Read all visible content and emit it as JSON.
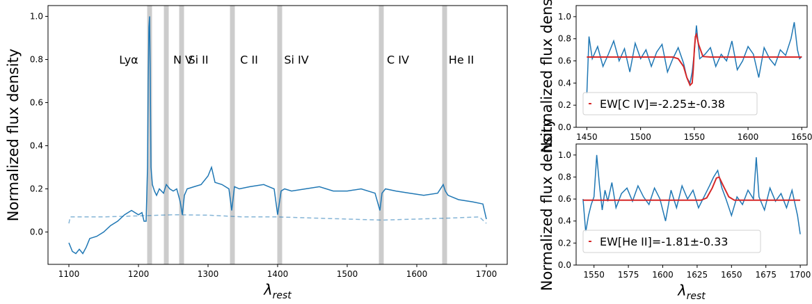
{
  "chart_data": [
    {
      "type": "line",
      "id": "main",
      "xlabel": "λ_rest",
      "ylabel": "Normalized flux density",
      "xlim": [
        1070,
        1730
      ],
      "ylim": [
        -0.15,
        1.05
      ],
      "xticks": [
        1100,
        1200,
        1300,
        1400,
        1500,
        1600,
        1700
      ],
      "yticks": [
        0.0,
        0.2,
        0.4,
        0.6,
        0.8,
        1.0
      ],
      "ytick_labels": [
        "0.0",
        "0.2",
        "0.4",
        "0.6",
        "0.8",
        "1.0"
      ],
      "grid": false,
      "line_color": "#1f77b4",
      "band_color": "#cccccc",
      "lines": [
        {
          "label": "Lyα",
          "x": 1216
        },
        {
          "label": "N V",
          "x": 1240
        },
        {
          "label": "Si II",
          "x": 1262
        },
        {
          "label": "C II",
          "x": 1335
        },
        {
          "label": "Si IV",
          "x": 1403
        },
        {
          "label": "C IV",
          "x": 1549
        },
        {
          "label": "He II",
          "x": 1640
        }
      ],
      "line_label_y": 0.8,
      "series": [
        {
          "style": "solid",
          "x": [
            1100,
            1105,
            1110,
            1115,
            1120,
            1125,
            1130,
            1140,
            1150,
            1160,
            1170,
            1180,
            1190,
            1200,
            1205,
            1208,
            1211,
            1213,
            1214,
            1215,
            1216,
            1217,
            1218,
            1220,
            1223,
            1226,
            1230,
            1236,
            1240,
            1245,
            1250,
            1255,
            1260,
            1263,
            1266,
            1270,
            1280,
            1290,
            1300,
            1305,
            1310,
            1320,
            1330,
            1334,
            1338,
            1345,
            1360,
            1380,
            1395,
            1400,
            1405,
            1410,
            1420,
            1440,
            1460,
            1480,
            1500,
            1520,
            1540,
            1547,
            1550,
            1555,
            1570,
            1590,
            1610,
            1630,
            1638,
            1641,
            1645,
            1660,
            1680,
            1695,
            1700
          ],
          "y": [
            -0.05,
            -0.09,
            -0.1,
            -0.08,
            -0.1,
            -0.07,
            -0.03,
            -0.02,
            0.0,
            0.03,
            0.05,
            0.08,
            0.1,
            0.08,
            0.09,
            0.05,
            0.05,
            0.3,
            0.7,
            0.95,
            1.0,
            0.7,
            0.3,
            0.22,
            0.19,
            0.17,
            0.2,
            0.18,
            0.22,
            0.2,
            0.19,
            0.2,
            0.14,
            0.08,
            0.17,
            0.2,
            0.21,
            0.22,
            0.26,
            0.3,
            0.23,
            0.22,
            0.2,
            0.1,
            0.21,
            0.2,
            0.21,
            0.22,
            0.2,
            0.08,
            0.19,
            0.2,
            0.19,
            0.2,
            0.21,
            0.19,
            0.19,
            0.2,
            0.18,
            0.1,
            0.18,
            0.2,
            0.19,
            0.18,
            0.17,
            0.18,
            0.22,
            0.19,
            0.17,
            0.15,
            0.14,
            0.13,
            0.06
          ]
        },
        {
          "style": "dashed",
          "x": [
            1100,
            1102,
            1110,
            1150,
            1200,
            1250,
            1300,
            1350,
            1400,
            1450,
            1500,
            1550,
            1600,
            1650,
            1690,
            1700
          ],
          "y": [
            0.04,
            0.07,
            0.07,
            0.07,
            0.075,
            0.08,
            0.078,
            0.07,
            0.07,
            0.065,
            0.06,
            0.055,
            0.06,
            0.065,
            0.07,
            0.04
          ]
        }
      ]
    },
    {
      "type": "line",
      "id": "civ",
      "xlabel": "",
      "ylabel": "Normalized flux density",
      "xlim": [
        1440,
        1655
      ],
      "ylim": [
        0.0,
        1.1
      ],
      "xticks": [
        1450,
        1500,
        1550,
        1600,
        1650
      ],
      "yticks": [
        0.0,
        0.2,
        0.4,
        0.6,
        0.8,
        1.0
      ],
      "ytick_labels": [
        "0.0",
        "0.2",
        "0.4",
        "0.6",
        "0.8",
        "1.0"
      ],
      "grid": false,
      "legend": "EW[C IV]=-2.25±-0.38",
      "legend_location": "lower-left",
      "data_color": "#1f77b4",
      "fit_color": "#d62728",
      "series": [
        {
          "style": "data",
          "x": [
            1450,
            1452,
            1455,
            1460,
            1465,
            1470,
            1475,
            1480,
            1485,
            1490,
            1495,
            1500,
            1505,
            1510,
            1515,
            1520,
            1525,
            1530,
            1535,
            1540,
            1543,
            1546,
            1548,
            1550,
            1552,
            1555,
            1560,
            1565,
            1570,
            1575,
            1580,
            1585,
            1590,
            1595,
            1600,
            1605,
            1610,
            1615,
            1620,
            1625,
            1630,
            1635,
            1640,
            1643,
            1646,
            1648,
            1650
          ],
          "y": [
            0.3,
            0.82,
            0.62,
            0.73,
            0.55,
            0.66,
            0.78,
            0.6,
            0.71,
            0.5,
            0.76,
            0.62,
            0.7,
            0.55,
            0.68,
            0.75,
            0.5,
            0.62,
            0.72,
            0.58,
            0.45,
            0.4,
            0.5,
            0.68,
            0.92,
            0.62,
            0.66,
            0.72,
            0.55,
            0.66,
            0.6,
            0.78,
            0.52,
            0.6,
            0.73,
            0.66,
            0.45,
            0.72,
            0.62,
            0.56,
            0.7,
            0.65,
            0.8,
            0.95,
            0.7,
            0.62,
            0.64
          ]
        },
        {
          "style": "fit",
          "x": [
            1450,
            1530,
            1535,
            1540,
            1543,
            1546,
            1548,
            1549,
            1550,
            1551,
            1552,
            1554,
            1558,
            1565,
            1650
          ],
          "y": [
            0.635,
            0.635,
            0.62,
            0.55,
            0.45,
            0.38,
            0.4,
            0.52,
            0.7,
            0.82,
            0.84,
            0.75,
            0.64,
            0.635,
            0.635
          ]
        }
      ]
    },
    {
      "type": "line",
      "id": "heii",
      "xlabel": "λ_rest",
      "ylabel": "Normalized flux density",
      "xlim": [
        1537,
        1705
      ],
      "ylim": [
        0.0,
        1.1
      ],
      "xticks": [
        1550,
        1575,
        1600,
        1625,
        1650,
        1675,
        1700
      ],
      "yticks": [
        0.0,
        0.2,
        0.4,
        0.6,
        0.8,
        1.0
      ],
      "ytick_labels": [
        "0.0",
        "0.2",
        "0.4",
        "0.6",
        "0.8",
        "1.0"
      ],
      "grid": false,
      "legend": "EW[He II]=-1.81±-0.33",
      "legend_location": "lower-left",
      "data_color": "#1f77b4",
      "fit_color": "#d62728",
      "series": [
        {
          "style": "data",
          "x": [
            1542,
            1544,
            1546,
            1548,
            1550,
            1552,
            1554,
            1556,
            1558,
            1560,
            1563,
            1566,
            1570,
            1574,
            1578,
            1582,
            1586,
            1590,
            1594,
            1598,
            1602,
            1606,
            1610,
            1614,
            1618,
            1622,
            1626,
            1630,
            1634,
            1637,
            1640,
            1643,
            1646,
            1650,
            1654,
            1658,
            1662,
            1666,
            1668,
            1670,
            1674,
            1678,
            1682,
            1686,
            1690,
            1694,
            1698,
            1700
          ],
          "y": [
            0.6,
            0.3,
            0.45,
            0.55,
            0.62,
            1.0,
            0.72,
            0.5,
            0.68,
            0.58,
            0.75,
            0.52,
            0.65,
            0.7,
            0.58,
            0.72,
            0.62,
            0.55,
            0.7,
            0.6,
            0.4,
            0.68,
            0.52,
            0.72,
            0.6,
            0.68,
            0.52,
            0.62,
            0.72,
            0.8,
            0.86,
            0.7,
            0.6,
            0.45,
            0.62,
            0.55,
            0.68,
            0.6,
            0.98,
            0.62,
            0.5,
            0.7,
            0.58,
            0.65,
            0.52,
            0.68,
            0.45,
            0.28
          ]
        },
        {
          "style": "fit",
          "x": [
            1542,
            1628,
            1632,
            1636,
            1639,
            1641,
            1644,
            1648,
            1652,
            1700
          ],
          "y": [
            0.59,
            0.59,
            0.61,
            0.7,
            0.79,
            0.8,
            0.72,
            0.62,
            0.59,
            0.59
          ]
        }
      ]
    }
  ]
}
